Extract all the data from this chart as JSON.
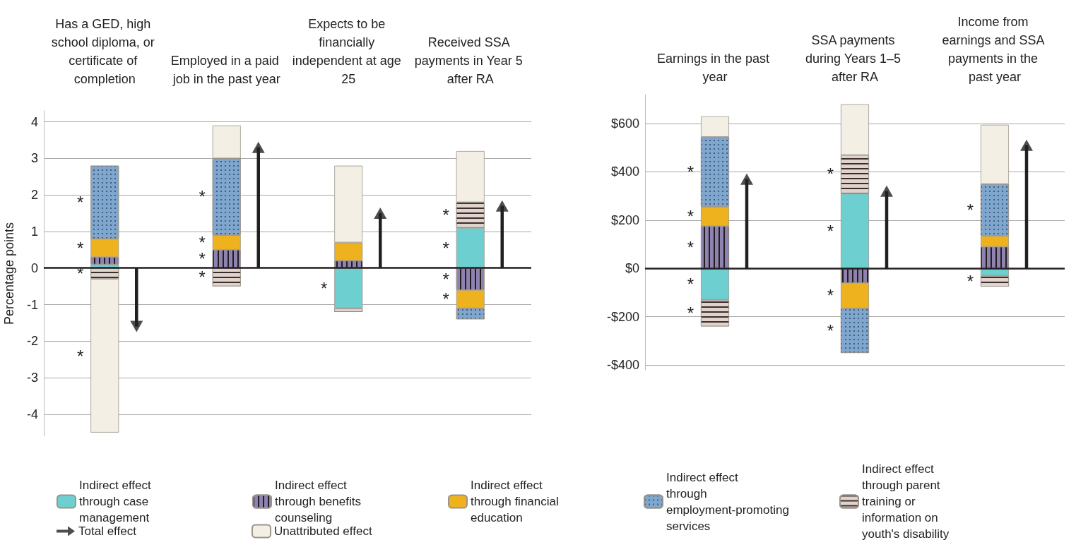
{
  "chart_data": [
    {
      "type": "bar",
      "stacked": true,
      "ylabel": "Percentage points",
      "categories": [
        "Has a GED, high school diploma, or certificate of completion",
        "Employed in a paid job in the past year",
        "Expects to be financially independent at age 25",
        "Received SSA payments in Year 5 after RA"
      ],
      "series": [
        {
          "name": "Indirect effect through case management",
          "color": "#6dcfcf",
          "values": [
            0.1,
            null,
            -1.1,
            1.1
          ],
          "value_labels": [
            null,
            null,
            "*",
            "*"
          ]
        },
        {
          "name": "Indirect effect through benefits counseling",
          "color": "#8e82b0",
          "values": [
            0.2,
            0.5,
            0.2,
            -0.6
          ],
          "value_labels": [
            null,
            "*",
            null,
            "*"
          ]
        },
        {
          "name": "Indirect effect through financial education",
          "color": "#efb21f",
          "values": [
            0.5,
            0.4,
            0.5,
            -0.5
          ],
          "value_labels": [
            "*",
            "*",
            null,
            "*"
          ]
        },
        {
          "name": "Indirect effect through employment-promoting services",
          "color": "#7fa6cc",
          "values": [
            2.0,
            2.1,
            null,
            -0.3
          ],
          "value_labels": [
            "*",
            "*",
            null,
            null
          ]
        },
        {
          "name": "Indirect effect through parent training or information on youth's disability",
          "color": "#e0d3cc",
          "values": [
            -0.3,
            -0.5,
            -0.1,
            0.7
          ],
          "value_labels": [
            "*",
            "*",
            null,
            "*"
          ]
        },
        {
          "name": "Total effect",
          "type": "lollipop",
          "marker": "triangle",
          "color": "#231f20",
          "values": [
            -1.6,
            3.3,
            1.5,
            1.7
          ]
        },
        {
          "name": "Unattributed effect",
          "color": "#f3efe4",
          "values": [
            -4.2,
            0.9,
            2.1,
            1.4
          ],
          "value_labels": [
            "*",
            null,
            null,
            null
          ]
        }
      ],
      "ylim": [
        -4.6,
        4.3
      ],
      "yticks": [
        -4,
        -3,
        -2,
        -1,
        0,
        1,
        2,
        3,
        4
      ],
      "grid": "y",
      "legend": "bottom"
    },
    {
      "type": "bar",
      "stacked": true,
      "categories": [
        "Earnings in the past year",
        "SSA payments during Years 1–5 after RA",
        "Income from earnings and SSA payments in the past year"
      ],
      "series": [
        {
          "color": "#6dcfcf",
          "values": [
            -130,
            310,
            -30
          ],
          "value_labels": [
            "*",
            "*",
            null
          ]
        },
        {
          "color": "#8e82b0",
          "values": [
            175,
            -60,
            90
          ],
          "value_labels": [
            "*",
            null,
            null
          ]
        },
        {
          "color": "#efb21f",
          "values": [
            80,
            -105,
            45
          ],
          "value_labels": [
            "*",
            "*",
            null
          ]
        },
        {
          "color": "#7fa6cc",
          "values": [
            290,
            -185,
            215
          ],
          "value_labels": [
            "*",
            "*",
            "*"
          ]
        },
        {
          "color": "#e0d3cc",
          "values": [
            -110,
            160,
            -45
          ],
          "value_labels": [
            "*",
            "*",
            "*"
          ]
        },
        {
          "type": "lollipop",
          "marker": "triangle",
          "color": "#231f20",
          "values": [
            370,
            320,
            510
          ]
        },
        {
          "color": "#f3efe4",
          "values": [
            85,
            210,
            245
          ]
        }
      ],
      "ylim": [
        -420,
        720
      ],
      "yticks": [
        {
          "value": -400,
          "label": "-$400"
        },
        {
          "value": -200,
          "label": "-$200"
        },
        {
          "value": 0,
          "label": "$0"
        },
        {
          "value": 200,
          "label": "$200"
        },
        {
          "value": 400,
          "label": "$400"
        },
        {
          "value": 600,
          "label": "$600"
        }
      ],
      "grid": "y",
      "legend": false
    }
  ]
}
